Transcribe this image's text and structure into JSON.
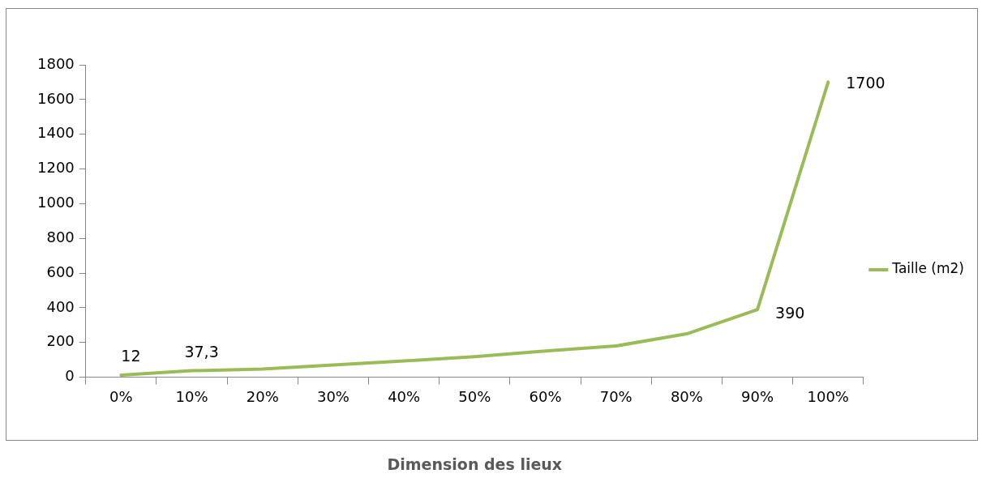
{
  "chart_data": {
    "type": "line",
    "xlabel": "Dimension des lieux",
    "categories": [
      "0%",
      "10%",
      "20%",
      "30%",
      "40%",
      "50%",
      "60%",
      "70%",
      "80%",
      "90%",
      "100%"
    ],
    "series": [
      {
        "name": "Taille (m2)",
        "color": "#9bbb59",
        "values": [
          12,
          37.3,
          47,
          71,
          94,
          118,
          151,
          180,
          250,
          390,
          1700
        ],
        "value_labels": [
          "12",
          "37,3",
          null,
          null,
          null,
          null,
          null,
          null,
          null,
          "390",
          "1700"
        ]
      }
    ],
    "ylim": [
      0,
      1800
    ],
    "yticks": [
      0,
      200,
      400,
      600,
      800,
      1000,
      1200,
      1400,
      1600,
      1800
    ],
    "grid": false,
    "legend": "right",
    "marker": "none",
    "line_style": "solid"
  }
}
